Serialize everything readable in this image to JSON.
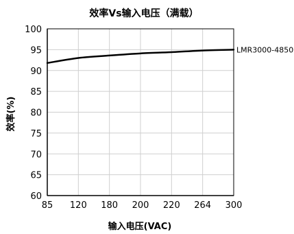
{
  "chart_data": {
    "type": "line",
    "title": "效率Vs输入电压（满载）",
    "xlabel": "输入电压(VAC)",
    "ylabel": "效率(%)",
    "categories": [
      "85",
      "120",
      "180",
      "200",
      "220",
      "264",
      "300"
    ],
    "ylim": [
      60,
      100
    ],
    "yticks": [
      "60",
      "65",
      "70",
      "75",
      "80",
      "85",
      "90",
      "95",
      "100"
    ],
    "grid": true,
    "series": [
      {
        "name": "LMR3000-4850",
        "values": [
          91.8,
          93.0,
          93.6,
          94.1,
          94.4,
          94.8,
          95.0
        ],
        "color": "#000000"
      }
    ]
  }
}
